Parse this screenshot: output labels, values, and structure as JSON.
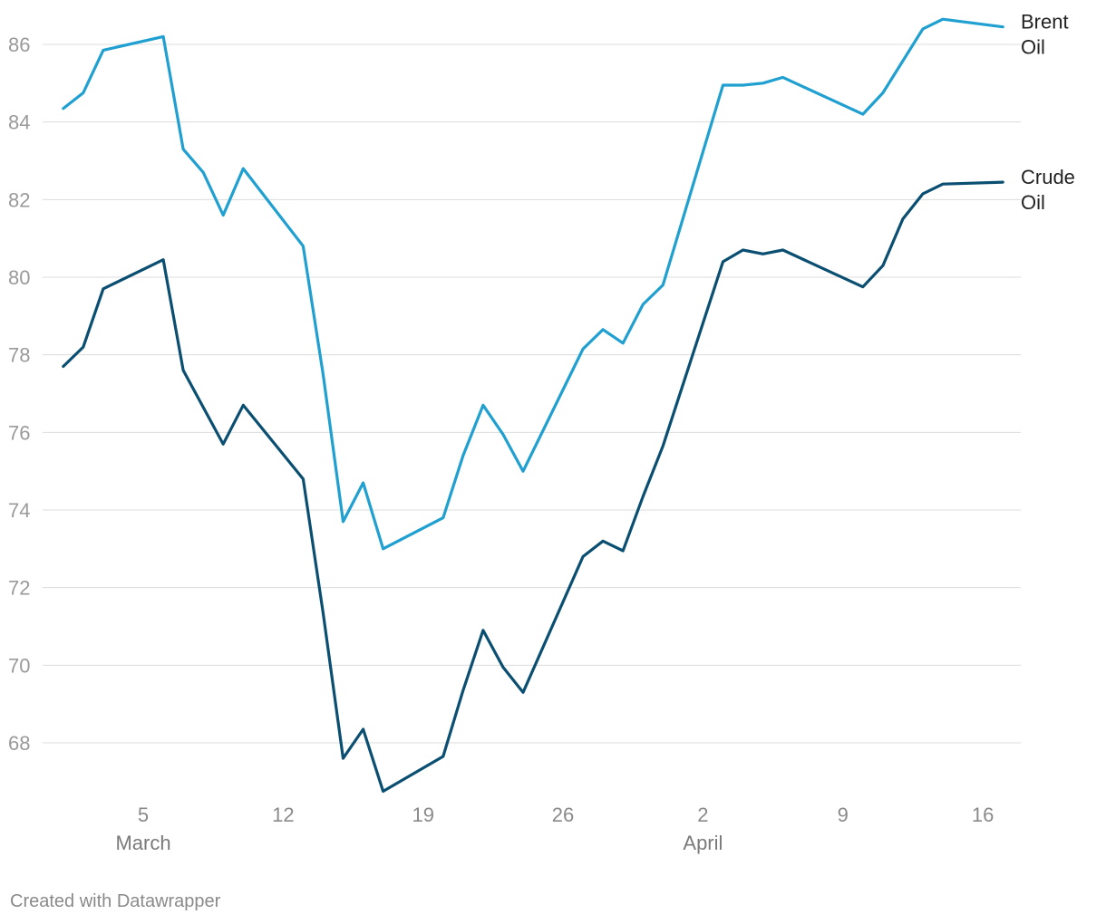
{
  "footer": "Created with Datawrapper",
  "chart_data": {
    "type": "line",
    "title": "",
    "xlabel": "",
    "ylabel": "",
    "ylim": [
      66.7,
      86.7
    ],
    "yticks": [
      68,
      70,
      72,
      74,
      76,
      78,
      80,
      82,
      84,
      86
    ],
    "xlim": [
      "2024-02-29",
      "2024-04-17"
    ],
    "xticks": [
      {
        "date": "2024-03-05",
        "label": "5",
        "month": "March"
      },
      {
        "date": "2024-03-12",
        "label": "12",
        "month": ""
      },
      {
        "date": "2024-03-19",
        "label": "19",
        "month": ""
      },
      {
        "date": "2024-03-26",
        "label": "26",
        "month": ""
      },
      {
        "date": "2024-04-02",
        "label": "2",
        "month": "April"
      },
      {
        "date": "2024-04-09",
        "label": "9",
        "month": ""
      },
      {
        "date": "2024-04-16",
        "label": "16",
        "month": ""
      }
    ],
    "grid": true,
    "legend": "inline-right",
    "series": [
      {
        "name": "Brent Oil",
        "label_lines": [
          "Brent",
          "Oil"
        ],
        "color": "#1fa0d0",
        "points": [
          [
            "2024-03-01",
            84.35
          ],
          [
            "2024-03-02",
            84.75
          ],
          [
            "2024-03-03",
            85.85
          ],
          [
            "2024-03-06",
            86.2
          ],
          [
            "2024-03-07",
            83.3
          ],
          [
            "2024-03-08",
            82.7
          ],
          [
            "2024-03-09",
            81.6
          ],
          [
            "2024-03-10",
            82.8
          ],
          [
            "2024-03-13",
            80.8
          ],
          [
            "2024-03-14",
            77.5
          ],
          [
            "2024-03-15",
            73.7
          ],
          [
            "2024-03-16",
            74.7
          ],
          [
            "2024-03-17",
            73.0
          ],
          [
            "2024-03-20",
            73.8
          ],
          [
            "2024-03-21",
            75.4
          ],
          [
            "2024-03-22",
            76.7
          ],
          [
            "2024-03-23",
            75.95
          ],
          [
            "2024-03-24",
            75.0
          ],
          [
            "2024-03-27",
            78.15
          ],
          [
            "2024-03-28",
            78.65
          ],
          [
            "2024-03-29",
            78.3
          ],
          [
            "2024-03-30",
            79.3
          ],
          [
            "2024-03-31",
            79.8
          ],
          [
            "2024-04-03",
            84.95
          ],
          [
            "2024-04-04",
            84.95
          ],
          [
            "2024-04-05",
            85.0
          ],
          [
            "2024-04-06",
            85.15
          ],
          [
            "2024-04-10",
            84.2
          ],
          [
            "2024-04-11",
            84.75
          ],
          [
            "2024-04-13",
            86.4
          ],
          [
            "2024-04-14",
            86.65
          ],
          [
            "2024-04-17",
            86.45
          ]
        ]
      },
      {
        "name": "Crude Oil",
        "label_lines": [
          "Crude",
          "Oil"
        ],
        "color": "#0a4f72",
        "points": [
          [
            "2024-03-01",
            77.7
          ],
          [
            "2024-03-02",
            78.2
          ],
          [
            "2024-03-03",
            79.7
          ],
          [
            "2024-03-06",
            80.45
          ],
          [
            "2024-03-07",
            77.6
          ],
          [
            "2024-03-09",
            75.7
          ],
          [
            "2024-03-10",
            76.7
          ],
          [
            "2024-03-13",
            74.8
          ],
          [
            "2024-03-14",
            71.35
          ],
          [
            "2024-03-15",
            67.6
          ],
          [
            "2024-03-16",
            68.35
          ],
          [
            "2024-03-17",
            66.75
          ],
          [
            "2024-03-20",
            67.65
          ],
          [
            "2024-03-21",
            69.35
          ],
          [
            "2024-03-22",
            70.9
          ],
          [
            "2024-03-23",
            69.95
          ],
          [
            "2024-03-24",
            69.3
          ],
          [
            "2024-03-27",
            72.8
          ],
          [
            "2024-03-28",
            73.2
          ],
          [
            "2024-03-29",
            72.95
          ],
          [
            "2024-03-30",
            74.35
          ],
          [
            "2024-03-31",
            75.65
          ],
          [
            "2024-04-03",
            80.4
          ],
          [
            "2024-04-04",
            80.7
          ],
          [
            "2024-04-05",
            80.6
          ],
          [
            "2024-04-06",
            80.7
          ],
          [
            "2024-04-10",
            79.75
          ],
          [
            "2024-04-11",
            80.3
          ],
          [
            "2024-04-12",
            81.5
          ],
          [
            "2024-04-13",
            82.15
          ],
          [
            "2024-04-14",
            82.4
          ],
          [
            "2024-04-17",
            82.45
          ]
        ]
      }
    ]
  }
}
